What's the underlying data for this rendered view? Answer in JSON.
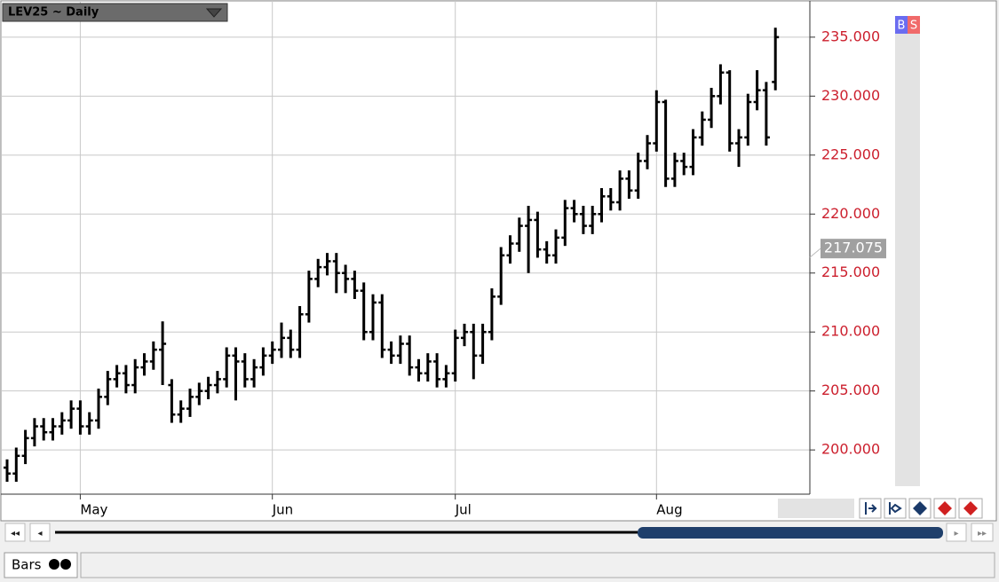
{
  "ui": {
    "chart_header": "LEV25 ~ Daily",
    "buy_button": "B",
    "sell_button": "S",
    "tab_label": "Bars"
  },
  "chart_data": {
    "type": "ohlc",
    "color": "#000000",
    "axis_label_color": "#cc1f2d",
    "grid": true,
    "ylim": [
      196.25,
      238.0
    ],
    "yticks": [
      {
        "value": 200,
        "label": "200.000"
      },
      {
        "value": 205,
        "label": "205.000"
      },
      {
        "value": 210,
        "label": "210.000"
      },
      {
        "value": 215,
        "label": "215.000"
      },
      {
        "value": 220,
        "label": "220.000"
      },
      {
        "value": 225,
        "label": "225.000"
      },
      {
        "value": 230,
        "label": "230.000"
      },
      {
        "value": 235,
        "label": "235.000"
      }
    ],
    "price_marker": 217.075,
    "categories": [
      null,
      null,
      null,
      null,
      null,
      null,
      null,
      null,
      "May",
      null,
      null,
      null,
      null,
      null,
      null,
      null,
      null,
      null,
      null,
      null,
      null,
      null,
      null,
      null,
      null,
      null,
      null,
      null,
      null,
      "Jun",
      null,
      null,
      null,
      null,
      null,
      null,
      null,
      null,
      null,
      null,
      null,
      null,
      null,
      null,
      null,
      null,
      null,
      null,
      null,
      "Jul",
      null,
      null,
      null,
      null,
      null,
      null,
      null,
      null,
      null,
      null,
      null,
      null,
      null,
      null,
      null,
      null,
      null,
      null,
      null,
      null,
      null,
      "Aug",
      null,
      null,
      null,
      null,
      null,
      null,
      null,
      null,
      null,
      null,
      null,
      null,
      null
    ],
    "open": [
      198.5,
      198.0,
      199.5,
      201.0,
      202.0,
      201.5,
      202.0,
      202.5,
      203.5,
      202.0,
      202.5,
      204.5,
      206.0,
      206.5,
      205.5,
      207.0,
      207.5,
      208.5,
      205.5,
      203.0,
      203.5,
      204.5,
      205.0,
      205.5,
      206.0,
      208.0,
      207.5,
      206.0,
      207.0,
      208.0,
      208.5,
      209.5,
      208.5,
      211.5,
      214.5,
      215.5,
      216.0,
      215.0,
      214.5,
      213.5,
      210.0,
      212.5,
      208.5,
      208.0,
      209.0,
      207.0,
      206.5,
      207.5,
      206.0,
      206.5,
      209.5,
      210.0,
      208.0,
      210.0,
      213.0,
      216.5,
      217.5,
      219.0,
      219.5,
      217.0,
      216.5,
      218.0,
      220.5,
      220.0,
      219.0,
      220.0,
      221.5,
      221.0,
      223.0,
      222.0,
      224.5,
      226.0,
      229.5,
      223.0,
      224.5,
      224.0,
      226.5,
      228.0,
      230.0,
      232.0,
      226.0,
      226.5,
      229.5,
      230.5,
      231.2
    ],
    "high": [
      199.2,
      200.2,
      201.7,
      202.7,
      202.7,
      202.7,
      203.2,
      204.2,
      204.2,
      203.2,
      205.2,
      206.7,
      207.2,
      207.2,
      207.7,
      208.2,
      209.2,
      210.9,
      206.0,
      204.2,
      205.2,
      205.7,
      206.2,
      206.7,
      208.7,
      208.7,
      208.2,
      207.7,
      208.7,
      209.2,
      210.8,
      210.2,
      212.2,
      215.2,
      216.2,
      216.7,
      216.7,
      215.7,
      215.2,
      214.2,
      213.2,
      213.2,
      209.2,
      209.7,
      209.7,
      207.7,
      208.2,
      208.2,
      207.2,
      210.2,
      210.7,
      210.7,
      210.7,
      213.7,
      217.2,
      218.2,
      219.7,
      220.7,
      220.2,
      217.7,
      218.7,
      221.2,
      221.2,
      220.7,
      220.7,
      222.2,
      222.2,
      223.7,
      223.7,
      225.2,
      226.7,
      230.5,
      229.7,
      225.2,
      225.2,
      227.2,
      228.7,
      230.7,
      232.7,
      232.2,
      227.2,
      230.2,
      232.2,
      231.2,
      235.8
    ],
    "low": [
      197.3,
      197.3,
      198.8,
      200.3,
      200.8,
      200.8,
      201.3,
      201.8,
      201.3,
      201.3,
      201.8,
      203.8,
      205.3,
      204.8,
      204.8,
      206.3,
      206.8,
      205.5,
      202.3,
      202.3,
      202.8,
      203.8,
      204.3,
      204.8,
      205.3,
      204.2,
      205.3,
      205.3,
      206.3,
      207.3,
      207.8,
      207.8,
      207.8,
      210.8,
      213.8,
      214.8,
      213.3,
      213.3,
      212.8,
      209.3,
      209.3,
      207.8,
      207.3,
      207.3,
      206.3,
      205.8,
      205.8,
      205.3,
      205.3,
      205.8,
      208.8,
      206.0,
      207.3,
      209.3,
      212.3,
      215.8,
      216.8,
      215.0,
      216.3,
      215.8,
      215.8,
      217.3,
      219.3,
      218.3,
      218.3,
      219.3,
      220.3,
      220.3,
      221.3,
      221.3,
      223.8,
      225.3,
      222.3,
      222.3,
      223.3,
      223.3,
      225.8,
      227.3,
      229.3,
      225.3,
      224.0,
      225.8,
      228.8,
      225.8,
      230.5
    ],
    "close": [
      198.0,
      199.5,
      201.0,
      202.0,
      201.5,
      202.0,
      202.5,
      203.5,
      202.0,
      202.5,
      204.5,
      206.0,
      206.5,
      205.5,
      207.0,
      207.5,
      208.5,
      209.0,
      203.0,
      203.5,
      204.5,
      205.0,
      205.5,
      206.0,
      208.0,
      207.5,
      206.0,
      207.0,
      208.0,
      208.5,
      209.5,
      208.5,
      211.5,
      214.5,
      215.5,
      216.0,
      215.0,
      214.5,
      213.5,
      210.0,
      212.5,
      208.5,
      208.0,
      209.0,
      207.0,
      206.5,
      207.5,
      206.0,
      206.5,
      209.5,
      210.0,
      208.0,
      210.0,
      213.0,
      216.5,
      217.5,
      219.0,
      219.5,
      217.0,
      216.5,
      218.0,
      220.5,
      220.0,
      219.0,
      220.0,
      221.5,
      221.0,
      223.0,
      222.0,
      224.5,
      226.0,
      229.5,
      223.0,
      224.5,
      224.0,
      226.5,
      228.0,
      230.0,
      232.0,
      226.0,
      226.5,
      229.5,
      230.5,
      226.5,
      235.0
    ]
  }
}
